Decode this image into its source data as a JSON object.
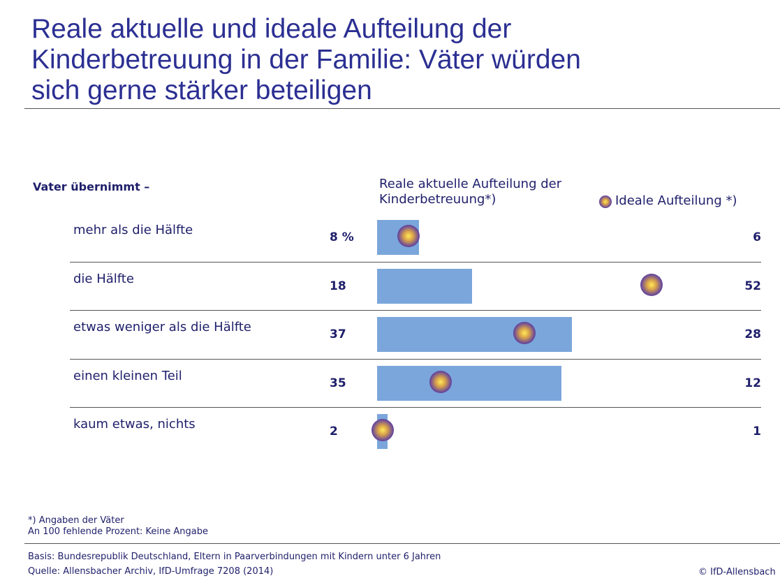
{
  "chart_data": {
    "type": "bar_dot",
    "title": [
      "Reale aktuelle und ideale Aufteilung der",
      "Kinderbetreuung in der Familie: Väter würden",
      "sich gerne stärker beteiligen"
    ],
    "row_header": "Vater übernimmt –",
    "categories": [
      "mehr als die Hälfte",
      "die Hälfte",
      "etwas weniger als die Hälfte",
      "einen kleinen Teil",
      "kaum etwas, nichts"
    ],
    "series": [
      {
        "name": "Reale aktuelle Aufteilung der Kinderbetreuung*)",
        "color": "#7ba6db",
        "values": [
          8,
          18,
          37,
          35,
          2
        ],
        "value_labels": [
          "8 %",
          "18",
          "37",
          "35",
          "2"
        ]
      },
      {
        "name": "Ideale Aufteilung *)",
        "color": "#3a2d8c",
        "values": [
          6,
          52,
          28,
          12,
          1
        ]
      }
    ],
    "notes": [
      "*) Angaben der Väter",
      "An 100 fehlende Prozent: Keine Angabe"
    ],
    "source": [
      "Basis: Bundesrepublik Deutschland, Eltern in Paarverbindungen mit Kindern unter 6 Jahren",
      "Quelle: Allensbacher Archiv, IfD-Umfrage 7208 (2014)"
    ],
    "copyright": "© IfD-Allensbach"
  }
}
